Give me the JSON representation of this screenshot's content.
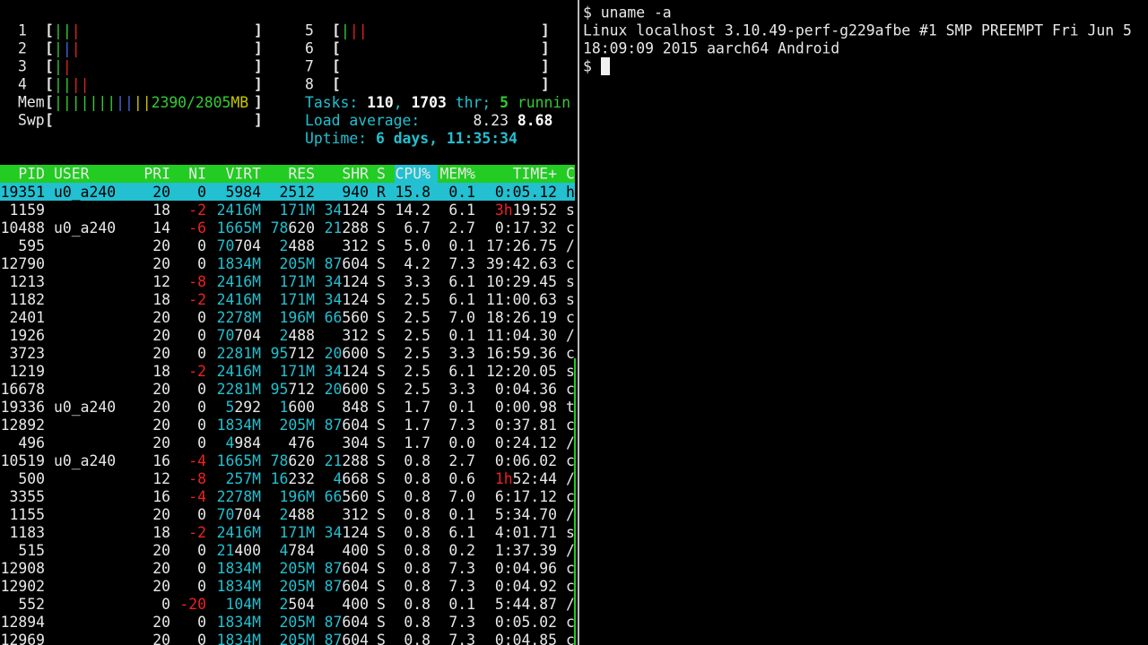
{
  "meters": {
    "brackets": [
      "[",
      "]"
    ],
    "cpus": [
      {
        "label": "1",
        "bars": [
          {
            "text": "||",
            "color": "#33cc33"
          },
          {
            "text": "|",
            "color": "#dd2222"
          }
        ]
      },
      {
        "label": "2",
        "bars": [
          {
            "text": "|",
            "color": "#33cc33"
          },
          {
            "text": "|",
            "color": "#4466dd"
          },
          {
            "text": "|",
            "color": "#dd2222"
          }
        ]
      },
      {
        "label": "3",
        "bars": [
          {
            "text": "|",
            "color": "#33cc33"
          },
          {
            "text": "|",
            "color": "#dd2222"
          }
        ]
      },
      {
        "label": "4",
        "bars": [
          {
            "text": "||",
            "color": "#33cc33"
          },
          {
            "text": "||",
            "color": "#dd2222"
          }
        ]
      },
      {
        "label": "5",
        "bars": [
          {
            "text": "|",
            "color": "#33cc33"
          },
          {
            "text": "||",
            "color": "#dd2222"
          }
        ]
      },
      {
        "label": "6",
        "bars": []
      },
      {
        "label": "7",
        "bars": []
      },
      {
        "label": "8",
        "bars": []
      }
    ],
    "mem": {
      "label": "Mem",
      "bars": [
        {
          "text": "|||||||",
          "color": "#33cc33"
        },
        {
          "text": "||",
          "color": "#4466dd"
        },
        {
          "text": "||",
          "color": "#c8c800"
        },
        {
          "text": "2390/2805",
          "color": "#33cc33"
        },
        {
          "text": "MB",
          "color": "#c8c800"
        }
      ]
    },
    "swp": {
      "label": "Swp",
      "bars": []
    }
  },
  "info": [
    [
      {
        "text": "Tasks: ",
        "color": "#22c0d0"
      },
      {
        "text": "110",
        "color": "#ffffff",
        "bold": true
      },
      {
        "text": ", ",
        "color": "#22c0d0"
      },
      {
        "text": "1703",
        "color": "#ffffff",
        "bold": true
      },
      {
        "text": " thr; ",
        "color": "#22c0d0"
      },
      {
        "text": "5",
        "color": "#33cc33",
        "bold": true
      },
      {
        "text": " runnin",
        "color": "#33cc33"
      }
    ],
    [
      {
        "text": "Load average:",
        "color": "#22c0d0"
      },
      {
        "text": "      8.23",
        "color": "#e8e8e8"
      },
      {
        "text": " 8.68",
        "color": "#ffffff",
        "bold": true
      }
    ],
    [
      {
        "text": "Uptime: ",
        "color": "#22c0d0"
      },
      {
        "text": "6 days, 11:35:34",
        "color": "#22c0d0",
        "bold": true
      }
    ]
  ],
  "process_table": {
    "columns": [
      "PID",
      "USER",
      "PRI",
      "NI",
      "VIRT",
      "RES",
      "SHR",
      "S",
      "CPU%",
      "MEM%",
      "TIME+",
      "C"
    ],
    "rows": [
      [
        "19351",
        "u0_a240",
        "20",
        "0",
        "5984",
        "2512",
        "940",
        "R",
        "15.8",
        "0.1",
        "0:05.12",
        "h"
      ],
      [
        "1159",
        null,
        "18",
        "-2",
        "2416M",
        "171M",
        "34124",
        "S",
        "14.2",
        "6.1",
        "3h19:52",
        "s"
      ],
      [
        "10488",
        "u0_a240",
        "14",
        "-6",
        "1665M",
        "78620",
        "21288",
        "S",
        "6.7",
        "2.7",
        "0:17.32",
        "c"
      ],
      [
        "595",
        null,
        "20",
        "0",
        "70704",
        "2488",
        "312",
        "S",
        "5.0",
        "0.1",
        "17:26.75",
        "/"
      ],
      [
        "12790",
        null,
        "20",
        "0",
        "1834M",
        "205M",
        "87604",
        "S",
        "4.2",
        "7.3",
        "39:42.63",
        "c"
      ],
      [
        "1213",
        null,
        "12",
        "-8",
        "2416M",
        "171M",
        "34124",
        "S",
        "3.3",
        "6.1",
        "10:29.45",
        "s"
      ],
      [
        "1182",
        null,
        "18",
        "-2",
        "2416M",
        "171M",
        "34124",
        "S",
        "2.5",
        "6.1",
        "11:00.63",
        "s"
      ],
      [
        "2401",
        null,
        "20",
        "0",
        "2278M",
        "196M",
        "66560",
        "S",
        "2.5",
        "7.0",
        "18:26.19",
        "c"
      ],
      [
        "1926",
        null,
        "20",
        "0",
        "70704",
        "2488",
        "312",
        "S",
        "2.5",
        "0.1",
        "11:04.30",
        "/"
      ],
      [
        "3723",
        null,
        "20",
        "0",
        "2281M",
        "95712",
        "20600",
        "S",
        "2.5",
        "3.3",
        "16:59.36",
        "c"
      ],
      [
        "1219",
        null,
        "18",
        "-2",
        "2416M",
        "171M",
        "34124",
        "S",
        "2.5",
        "6.1",
        "12:20.05",
        "s"
      ],
      [
        "16678",
        null,
        "20",
        "0",
        "2281M",
        "95712",
        "20600",
        "S",
        "2.5",
        "3.3",
        "0:04.36",
        "c"
      ],
      [
        "19336",
        "u0_a240",
        "20",
        "0",
        "5292",
        "1600",
        "848",
        "S",
        "1.7",
        "0.1",
        "0:00.98",
        "t"
      ],
      [
        "12892",
        null,
        "20",
        "0",
        "1834M",
        "205M",
        "87604",
        "S",
        "1.7",
        "7.3",
        "0:37.81",
        "c"
      ],
      [
        "496",
        null,
        "20",
        "0",
        "4984",
        "476",
        "304",
        "S",
        "1.7",
        "0.0",
        "0:24.12",
        "/"
      ],
      [
        "10519",
        "u0_a240",
        "16",
        "-4",
        "1665M",
        "78620",
        "21288",
        "S",
        "0.8",
        "2.7",
        "0:06.02",
        "c"
      ],
      [
        "500",
        null,
        "12",
        "-8",
        "257M",
        "16232",
        "4668",
        "S",
        "0.8",
        "0.6",
        "1h52:44",
        "/"
      ],
      [
        "3355",
        null,
        "16",
        "-4",
        "2278M",
        "196M",
        "66560",
        "S",
        "0.8",
        "7.0",
        "6:17.12",
        "c"
      ],
      [
        "1155",
        null,
        "20",
        "0",
        "70704",
        "2488",
        "312",
        "S",
        "0.8",
        "0.1",
        "5:34.70",
        "/"
      ],
      [
        "1183",
        null,
        "18",
        "-2",
        "2416M",
        "171M",
        "34124",
        "S",
        "0.8",
        "6.1",
        "4:01.71",
        "s"
      ],
      [
        "515",
        null,
        "20",
        "0",
        "21400",
        "4784",
        "400",
        "S",
        "0.8",
        "0.2",
        "1:37.39",
        "/"
      ],
      [
        "12908",
        null,
        "20",
        "0",
        "1834M",
        "205M",
        "87604",
        "S",
        "0.8",
        "7.3",
        "0:04.96",
        "c"
      ],
      [
        "12902",
        null,
        "20",
        "0",
        "1834M",
        "205M",
        "87604",
        "S",
        "0.8",
        "7.3",
        "0:04.92",
        "c"
      ],
      [
        "552",
        null,
        "0",
        "-20",
        "104M",
        "2504",
        "400",
        "S",
        "0.8",
        "0.1",
        "5:44.87",
        "/"
      ],
      [
        "12894",
        null,
        "20",
        "0",
        "1834M",
        "205M",
        "87604",
        "S",
        "0.8",
        "7.3",
        "0:05.02",
        "c"
      ],
      [
        "12969",
        null,
        "20",
        "0",
        "1834M",
        "205M",
        "87604",
        "S",
        "0.8",
        "7.3",
        "0:04.85",
        "c"
      ]
    ]
  },
  "terminal": {
    "lines": [
      "$ uname -a",
      "Linux localhost 3.10.49-perf-g229afbe #1 SMP PREEMPT Fri Jun 5",
      "18:09:09 2015 aarch64 Android",
      "$"
    ]
  }
}
